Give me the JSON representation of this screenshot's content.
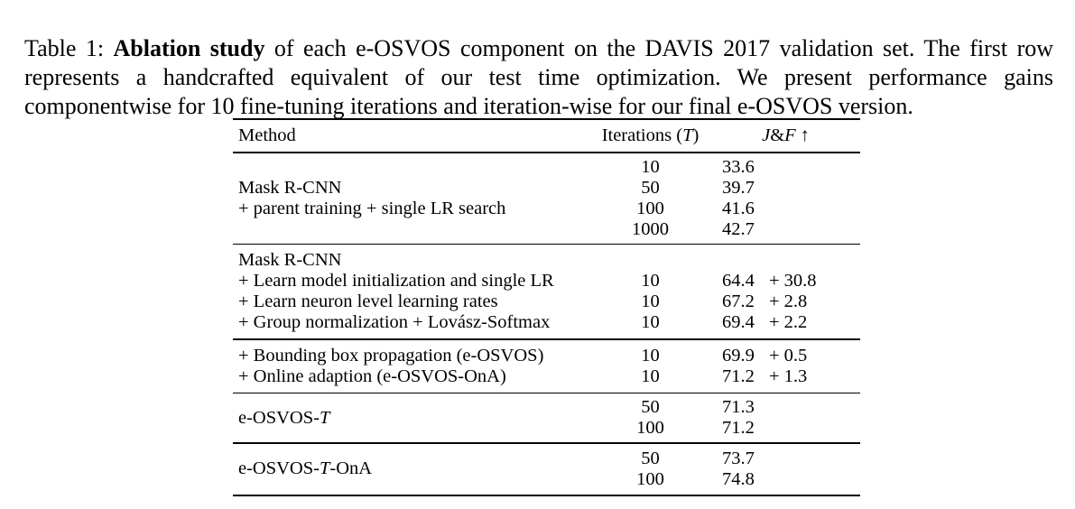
{
  "caption": {
    "prefix": "Table 1: ",
    "bold": "Ablation study",
    "rest": " of each e-OSVOS component on the DAVIS 2017 validation set. The first row represents a handcrafted equivalent of our test time optimization. We present performance gains componentwise for 10 fine-tuning iterations and iteration-wise for our final e-OSVOS version."
  },
  "table": {
    "header": {
      "method": "Method",
      "iterations_pre": "Iterations (",
      "iterations_t": "T",
      "iterations_post": ")",
      "jf_j": "J",
      "jf_amp": "&",
      "jf_f": "F",
      "jf_arrow": "↑"
    },
    "blocks": [
      {
        "method_lines": [
          "Mask R-CNN",
          "+ parent training + single LR search"
        ],
        "rows": [
          {
            "iterations": "10",
            "jf": "33.6"
          },
          {
            "iterations": "50",
            "jf": "39.7"
          },
          {
            "iterations": "100",
            "jf": "41.6"
          },
          {
            "iterations": "1000",
            "jf": "42.7"
          }
        ]
      },
      {
        "rows": [
          {
            "method": "Mask R-CNN"
          },
          {
            "method": "+ Learn model initialization and single LR",
            "iterations": "10",
            "jf": "64.4",
            "gain": "+ 30.8"
          },
          {
            "method": "+ Learn neuron level learning rates",
            "iterations": "10",
            "jf": "67.2",
            "gain": "+ 2.8"
          },
          {
            "method": "+ Group normalization + Lovász-Softmax",
            "iterations": "10",
            "jf": "69.4",
            "gain": "+ 2.2"
          }
        ]
      },
      {
        "rows": [
          {
            "method": "+ Bounding box propagation (e-OSVOS)",
            "iterations": "10",
            "jf": "69.9",
            "gain": "+ 0.5"
          },
          {
            "method": "+ Online adaption (e-OSVOS-OnA)",
            "iterations": "10",
            "jf": "71.2",
            "gain": "+ 1.3"
          }
        ]
      },
      {
        "method_pre": "e-OSVOS-",
        "method_t": "T",
        "method_post": "",
        "rows": [
          {
            "iterations": "50",
            "jf": "71.3"
          },
          {
            "iterations": "100",
            "jf": "71.2"
          }
        ]
      },
      {
        "method_pre": "e-OSVOS-",
        "method_t": "T",
        "method_post": "-OnA",
        "rows": [
          {
            "iterations": "50",
            "jf": "73.7"
          },
          {
            "iterations": "100",
            "jf": "74.8"
          }
        ]
      }
    ]
  }
}
